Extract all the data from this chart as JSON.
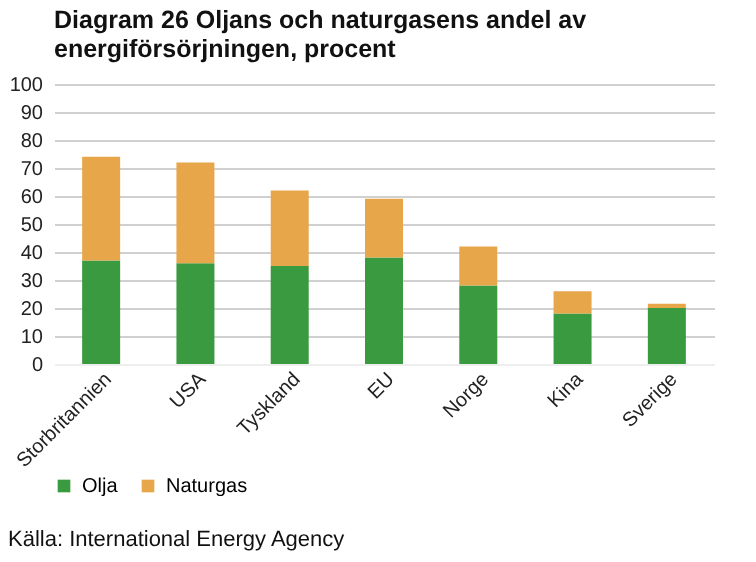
{
  "chart_data": {
    "type": "bar",
    "stacked": true,
    "title": "Diagram 26 Oljans och naturgasens andel av energiförsörjningen, procent",
    "categories": [
      "Storbritannien",
      "USA",
      "Tyskland",
      "EU",
      "Norge",
      "Kina",
      "Sverige"
    ],
    "series": [
      {
        "name": "Olja",
        "color": "#3a9a3f",
        "values": [
          37,
          36,
          35,
          38,
          28,
          18,
          20
        ]
      },
      {
        "name": "Naturgas",
        "color": "#e8a64b",
        "values": [
          37,
          36,
          27,
          21,
          14,
          8,
          1.5
        ]
      }
    ],
    "ylim": [
      0,
      100
    ],
    "yticks": [
      0,
      10,
      20,
      30,
      40,
      50,
      60,
      70,
      80,
      90,
      100
    ],
    "grid": "y",
    "legend": "bottom",
    "annotations": [
      "Källa: International Energy Agency"
    ]
  }
}
